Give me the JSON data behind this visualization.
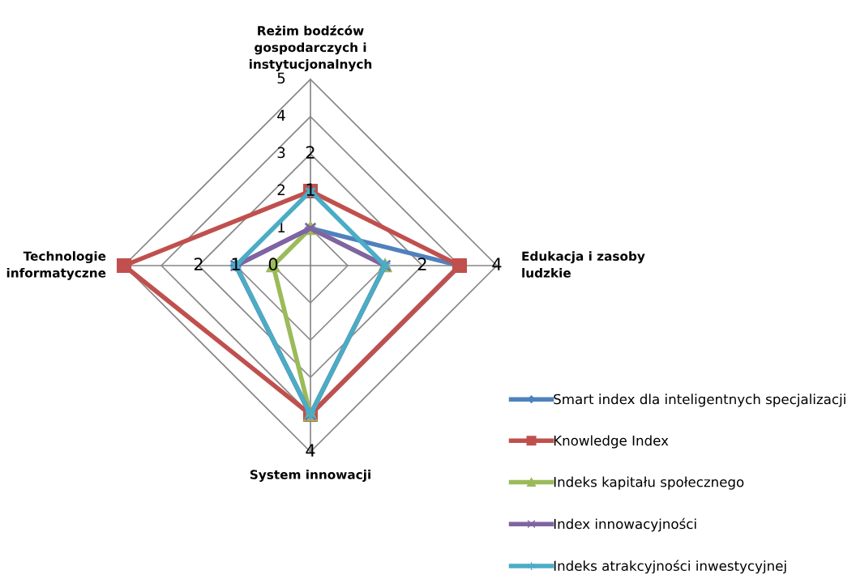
{
  "chart_data": {
    "type": "radar",
    "categories": [
      "Reżim bodźców\ngospodarczych i\ninstytucjonalnych",
      "Edukacja i zasoby\nludzkie",
      "System innowacji",
      "Technologie\ninformatyczne"
    ],
    "series": [
      {
        "name": "Smart index dla inteligentnych specjalizacji",
        "color": "#4f81bd",
        "marker": "diamond",
        "values": [
          1,
          4,
          4,
          2
        ]
      },
      {
        "name": "Knowledge Index",
        "color": "#c0504d",
        "marker": "square",
        "values": [
          2,
          4,
          4,
          5
        ]
      },
      {
        "name": "Indeks kapitału społecznego",
        "color": "#9bbb59",
        "marker": "triangle",
        "values": [
          1,
          2,
          4,
          1
        ]
      },
      {
        "name": "Index innowacyjności",
        "color": "#8064a2",
        "marker": "cross",
        "values": [
          1,
          2,
          4,
          2
        ]
      },
      {
        "name": "Indeks atrakcyjności inwestycyjnej",
        "color": "#4bacc6",
        "marker": "star",
        "values": [
          2,
          2,
          4,
          2
        ]
      }
    ],
    "ylim": [
      0,
      5
    ],
    "yticks": [
      1,
      2,
      3,
      4,
      5
    ],
    "grid": true,
    "legend": "bottom right",
    "annotations": [
      "2",
      "1",
      "2",
      "4",
      "4",
      "2",
      "1",
      "0"
    ]
  }
}
